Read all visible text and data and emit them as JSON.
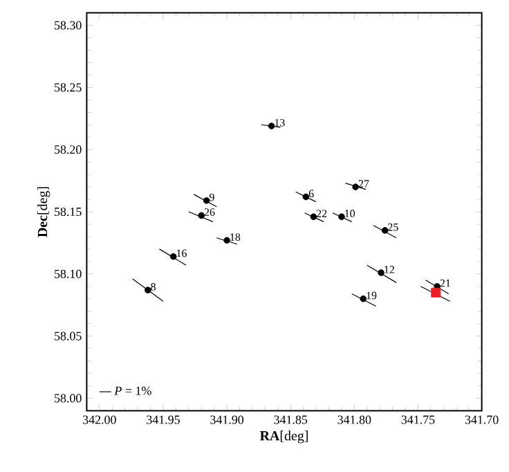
{
  "chart_data": {
    "type": "scatter",
    "xlabel": "**RA**[deg]",
    "ylabel": "**Dec**[deg]",
    "xlim": [
      342.01,
      341.7
    ],
    "ylim": [
      57.99,
      58.31
    ],
    "xticks": [
      {
        "value": 342.0,
        "label": "342.00"
      },
      {
        "value": 341.95,
        "label": "341.95"
      },
      {
        "value": 341.9,
        "label": "341.90"
      },
      {
        "value": 341.85,
        "label": "341.85"
      },
      {
        "value": 341.8,
        "label": "341.80"
      },
      {
        "value": 341.75,
        "label": "341.75"
      },
      {
        "value": 341.7,
        "label": "341.70"
      }
    ],
    "yticks": [
      {
        "value": 58.0,
        "label": "58.00"
      },
      {
        "value": 58.05,
        "label": "58.05"
      },
      {
        "value": 58.1,
        "label": "58.10"
      },
      {
        "value": 58.15,
        "label": "58.15"
      },
      {
        "value": 58.2,
        "label": "58.20"
      },
      {
        "value": 58.25,
        "label": "58.25"
      },
      {
        "value": 58.3,
        "label": "58.30"
      }
    ],
    "legend": "bottom left",
    "series": [
      {
        "type": "line",
        "name": "*P* = 1%",
        "color": "#000000",
        "line_style": "solid",
        "marker": "none",
        "x": [
          341.873,
          341.858,
          null,
          341.926,
          341.908,
          null,
          341.93,
          341.911,
          null,
          341.908,
          341.892,
          null,
          341.953,
          341.932,
          null,
          341.974,
          341.95,
          null,
          341.846,
          341.83,
          null,
          341.807,
          341.791,
          null,
          341.839,
          341.824,
          null,
          341.817,
          341.802,
          null,
          341.785,
          341.767,
          null,
          341.79,
          341.767,
          null,
          341.802,
          341.783,
          null,
          341.744,
          341.726,
          null,
          341.748,
          341.725
        ],
        "values": [
          58.22,
          58.218,
          null,
          58.164,
          58.154,
          null,
          58.15,
          58.142,
          null,
          58.129,
          58.124,
          null,
          58.12,
          58.107,
          null,
          58.096,
          58.078,
          null,
          58.166,
          58.158,
          null,
          58.173,
          58.168,
          null,
          58.149,
          58.142,
          null,
          58.149,
          58.142,
          null,
          58.139,
          58.129,
          null,
          58.107,
          58.093,
          null,
          58.084,
          58.074,
          null,
          58.095,
          58.084,
          null,
          58.09,
          58.078
        ]
      },
      {
        "type": "scatter",
        "color": "#000000",
        "marker": "circle",
        "x": [
          341.865,
          341.916,
          341.92,
          341.9,
          341.942,
          341.962,
          341.838,
          341.799,
          341.832,
          341.81,
          341.776,
          341.779,
          341.793,
          341.735
        ],
        "values": [
          58.219,
          58.159,
          58.147,
          58.127,
          58.114,
          58.087,
          58.162,
          58.17,
          58.146,
          58.146,
          58.135,
          58.101,
          58.08,
          58.09
        ]
      },
      {
        "type": "scatter",
        "color": "#ee1c25",
        "marker": "square",
        "x": [
          341.736
        ],
        "values": [
          58.085
        ]
      }
    ],
    "annotations": [
      {
        "text": "13",
        "x": 341.865,
        "y": 58.219
      },
      {
        "text": "9",
        "x": 341.916,
        "y": 58.159
      },
      {
        "text": "26",
        "x": 341.92,
        "y": 58.147
      },
      {
        "text": "18",
        "x": 341.9,
        "y": 58.127
      },
      {
        "text": "16",
        "x": 341.942,
        "y": 58.114
      },
      {
        "text": "8",
        "x": 341.962,
        "y": 58.087
      },
      {
        "text": "6",
        "x": 341.838,
        "y": 58.162
      },
      {
        "text": "27",
        "x": 341.799,
        "y": 58.17
      },
      {
        "text": "22",
        "x": 341.832,
        "y": 58.146
      },
      {
        "text": "10",
        "x": 341.81,
        "y": 58.146
      },
      {
        "text": "25",
        "x": 341.776,
        "y": 58.135
      },
      {
        "text": "12",
        "x": 341.779,
        "y": 58.101
      },
      {
        "text": "19",
        "x": 341.793,
        "y": 58.08
      },
      {
        "text": "21",
        "x": 341.735,
        "y": 58.09
      }
    ]
  }
}
